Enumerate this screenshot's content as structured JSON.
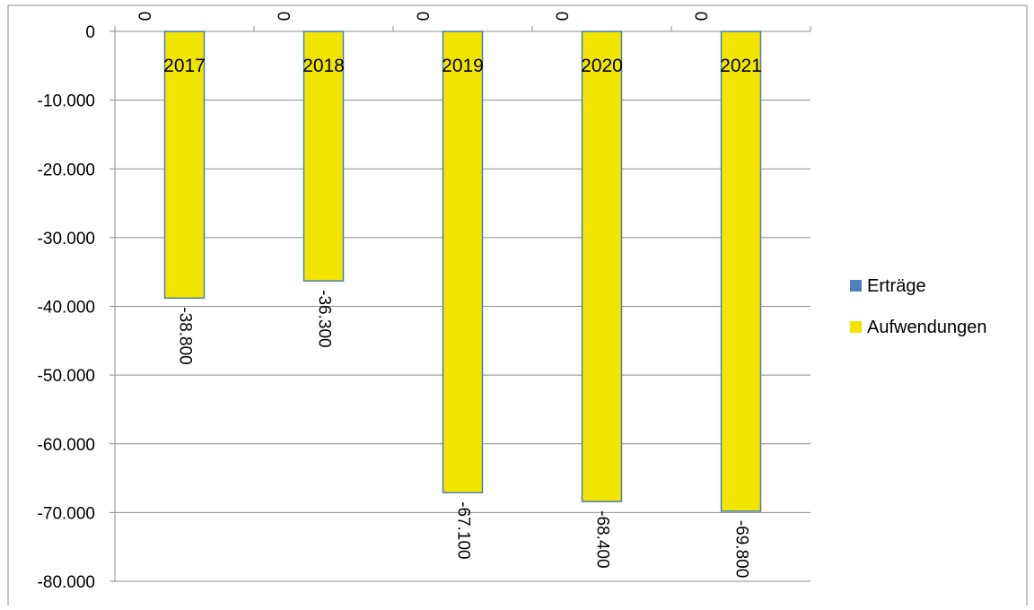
{
  "chart_data": {
    "type": "bar",
    "title": "",
    "xlabel": "",
    "ylabel": "",
    "categories": [
      "2017",
      "2018",
      "2019",
      "2020",
      "2021"
    ],
    "series": [
      {
        "name": "Erträge",
        "color": "#4F81BD",
        "values": [
          0,
          0,
          0,
          0,
          0
        ],
        "labels": [
          "0",
          "0",
          "0",
          "0",
          "0"
        ]
      },
      {
        "name": "Aufwendungen",
        "color": "#F2E500",
        "border_color": "#4A7EBB",
        "values": [
          -38800,
          -36300,
          -67100,
          -68400,
          -69800
        ],
        "labels": [
          "-38.800",
          "-36.300",
          "-67.100",
          "-68.400",
          "-69.800"
        ]
      }
    ],
    "ylim": [
      -80000,
      0
    ],
    "yticks": [
      0,
      -10000,
      -20000,
      -30000,
      -40000,
      -50000,
      -60000,
      -70000,
      -80000
    ],
    "ytick_labels": [
      "0",
      "-10.000",
      "-20.000",
      "-30.000",
      "-40.000",
      "-50.000",
      "-60.000",
      "-70.000",
      "-80.000"
    ],
    "grid": true,
    "legend_position": "right"
  }
}
